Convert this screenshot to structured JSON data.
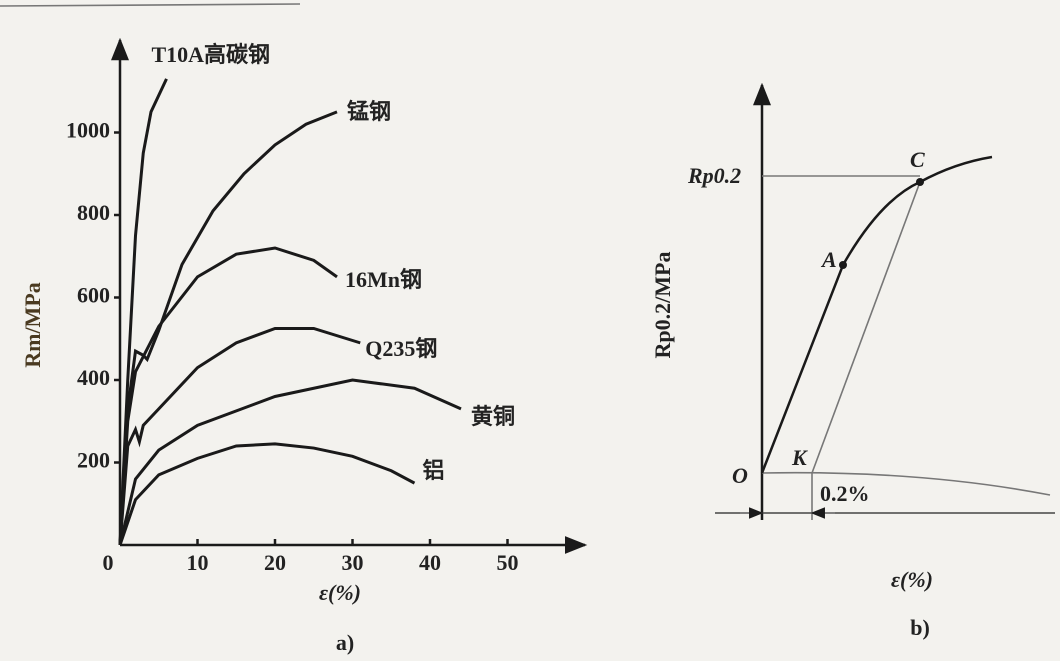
{
  "chart_data": {
    "type": "line",
    "panel_label": "a)",
    "xlabel": "ε(%)",
    "ylabel": "Rm/MPa",
    "xlim": [
      0,
      60
    ],
    "ylim": [
      0,
      1200
    ],
    "xticks": [
      0,
      10,
      20,
      30,
      40,
      50
    ],
    "yticks": [
      200,
      400,
      600,
      800,
      1000
    ],
    "grid": false,
    "series": [
      {
        "name": "T10A高碳钢",
        "color": "#1a1a1a",
        "x": [
          0,
          1,
          2,
          3,
          4,
          6
        ],
        "values": [
          0,
          400,
          750,
          950,
          1050,
          1130
        ]
      },
      {
        "name": "锰钢",
        "color": "#1a1a1a",
        "x": [
          0,
          1,
          2,
          3,
          3.5,
          5,
          8,
          12,
          16,
          20,
          24,
          28
        ],
        "values": [
          0,
          330,
          470,
          460,
          450,
          520,
          680,
          810,
          900,
          970,
          1020,
          1050
        ]
      },
      {
        "name": "16Mn钢",
        "color": "#1a1a1a",
        "x": [
          0,
          1,
          2,
          5,
          10,
          15,
          20,
          25,
          28
        ],
        "values": [
          0,
          300,
          420,
          530,
          650,
          705,
          720,
          690,
          650
        ]
      },
      {
        "name": "Q235钢",
        "color": "#1a1a1a",
        "x": [
          0,
          1,
          2,
          2.5,
          3,
          5,
          10,
          15,
          20,
          25,
          31
        ],
        "values": [
          0,
          240,
          280,
          250,
          290,
          330,
          430,
          490,
          525,
          525,
          490
        ]
      },
      {
        "name": "黄铜",
        "color": "#1a1a1a",
        "x": [
          0,
          2,
          5,
          10,
          20,
          30,
          38,
          44
        ],
        "values": [
          0,
          160,
          230,
          290,
          360,
          400,
          380,
          330
        ]
      },
      {
        "name": "铝",
        "color": "#1a1a1a",
        "x": [
          0,
          2,
          5,
          10,
          15,
          20,
          25,
          30,
          35,
          38
        ],
        "values": [
          0,
          110,
          170,
          210,
          240,
          245,
          235,
          215,
          180,
          150
        ]
      }
    ]
  },
  "panel_b": {
    "panel_label": "b)",
    "ylabel": "Rp0.2/MPa",
    "xlabel": "ε(%)",
    "level_label": "Rp0.2",
    "points": {
      "C": "C",
      "A": "A",
      "O": "O",
      "K": "K"
    },
    "offset_label": "0.2%"
  }
}
